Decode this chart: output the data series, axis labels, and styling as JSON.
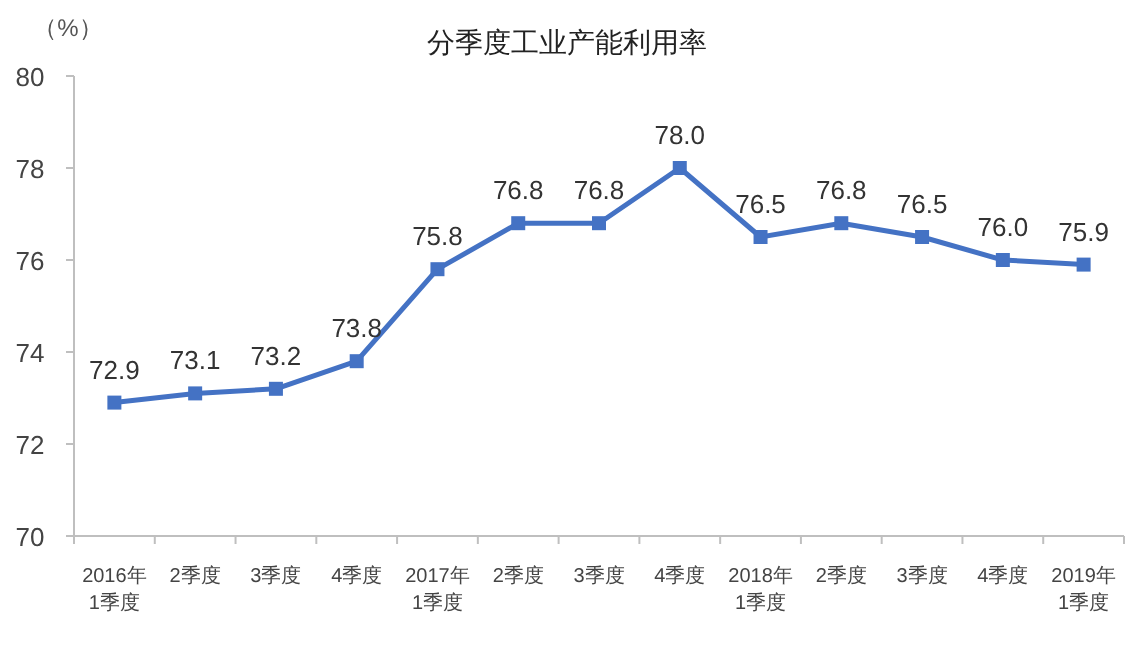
{
  "chart_data": {
    "type": "line",
    "title": "分季度工业产能利用率",
    "ylabel": "（%）",
    "categories": [
      "2016年\n1季度",
      "2季度",
      "3季度",
      "4季度",
      "2017年\n1季度",
      "2季度",
      "3季度",
      "4季度",
      "2018年\n1季度",
      "2季度",
      "3季度",
      "4季度",
      "2019年\n1季度"
    ],
    "series": [
      {
        "color": "#4472c4",
        "values": [
          72.9,
          73.1,
          73.2,
          73.8,
          75.8,
          76.8,
          76.8,
          78.0,
          76.5,
          76.8,
          76.5,
          76.0,
          75.9
        ],
        "value_labels": [
          "72.9",
          "73.1",
          "73.2",
          "73.8",
          "75.8",
          "76.8",
          "76.8",
          "78.0",
          "76.5",
          "76.8",
          "76.5",
          "76.0",
          "75.9"
        ]
      }
    ],
    "ylim": [
      70,
      80
    ],
    "yticks": [
      70,
      72,
      74,
      76,
      78,
      80
    ],
    "marker": "square"
  }
}
